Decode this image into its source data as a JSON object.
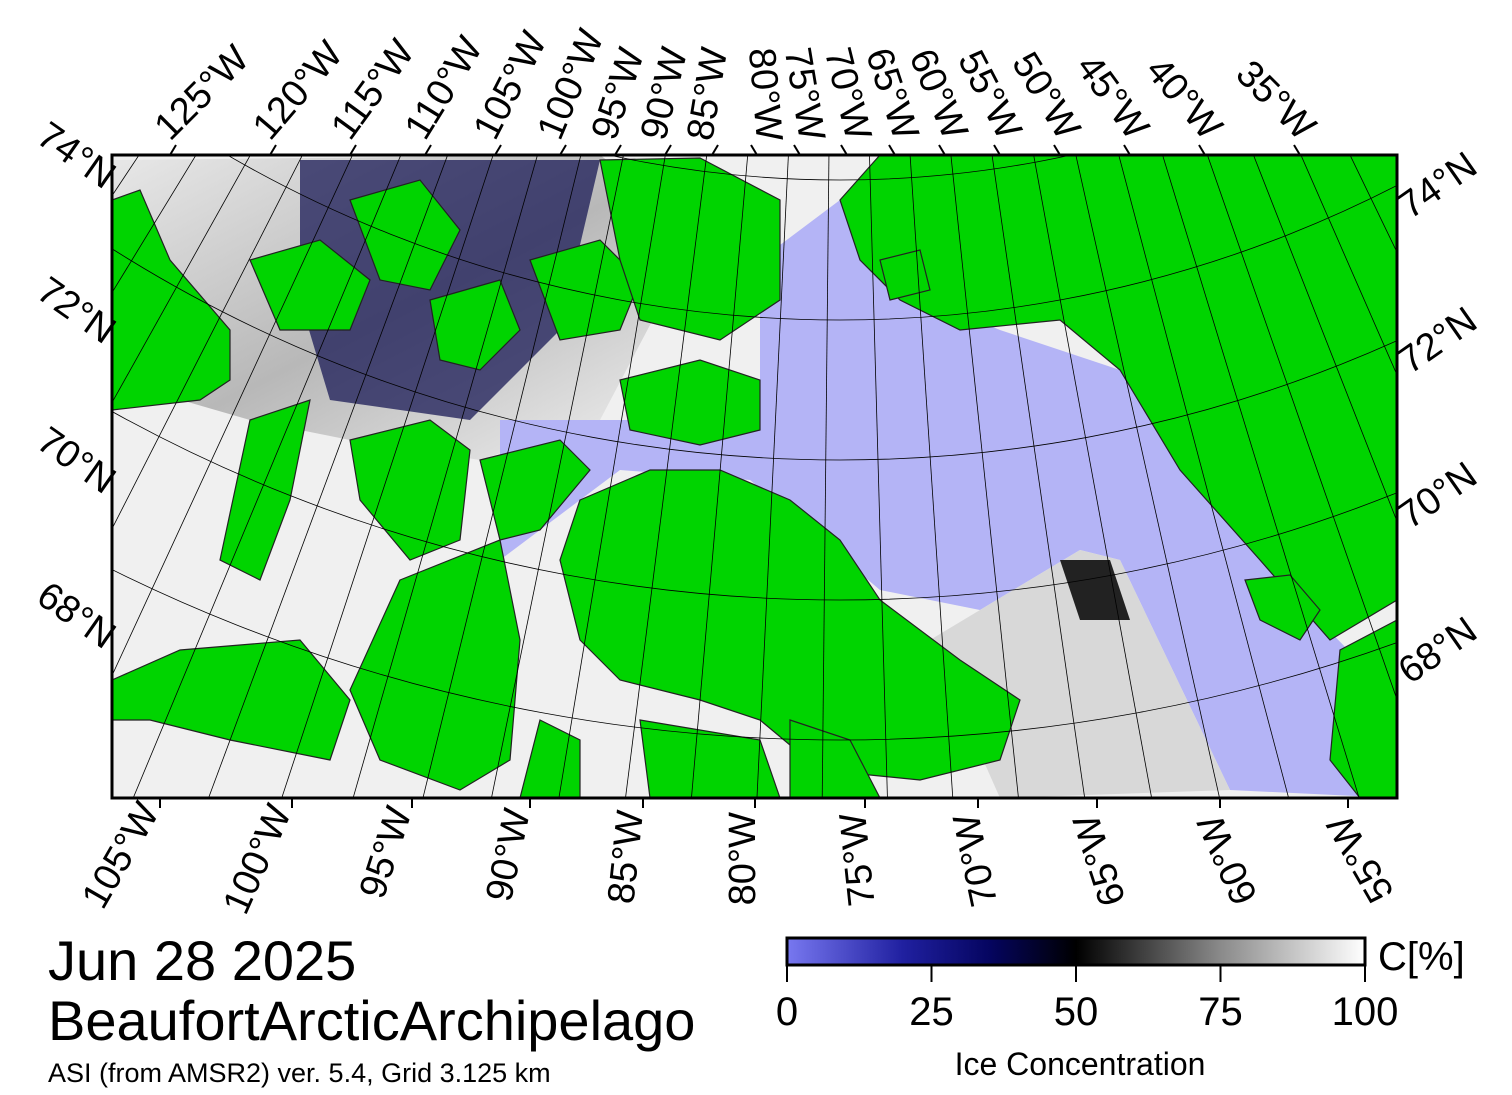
{
  "map": {
    "date": "Jun 28 2025",
    "region": "BeaufortArcticArchipelago",
    "source": "ASI (from AMSR2) ver. 5.4,  Grid 3.125 km",
    "top_labels": [
      "125°W",
      "120°W",
      "115°W",
      "110°W",
      "105°W",
      "100°W",
      "95°W",
      "90°W",
      "85°W",
      "80°W",
      "75°W",
      "70°W",
      "65°W",
      "60°W",
      "55°W",
      "50°W",
      "45°W",
      "40°W",
      "35°W"
    ],
    "bottom_labels": [
      "105°W",
      "100°W",
      "95°W",
      "90°W",
      "85°W",
      "80°W",
      "75°W",
      "70°W",
      "65°W",
      "60°W",
      "55°W"
    ],
    "left_labels": [
      "74°N",
      "72°N",
      "70°N",
      "68°N"
    ],
    "right_labels": [
      "74°N",
      "72°N",
      "70°N",
      "68°N"
    ],
    "colorbar": {
      "label": "Ice Concentration",
      "unit": "C[%]",
      "lim": [
        0,
        100
      ],
      "ticks": [
        0,
        25,
        50,
        75,
        100
      ]
    }
  }
}
